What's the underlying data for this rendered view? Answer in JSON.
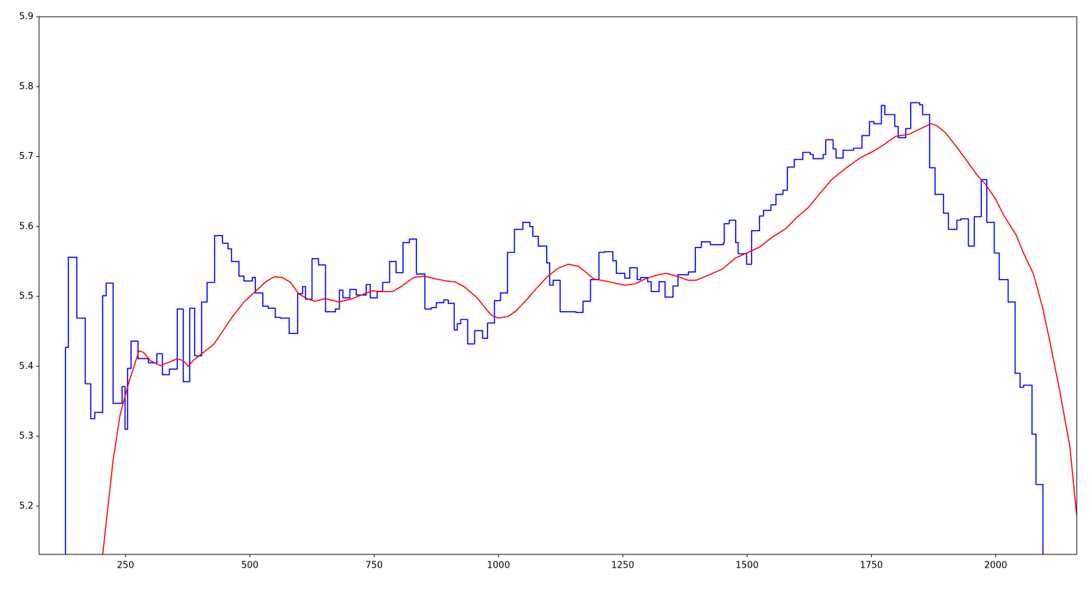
{
  "chart_data": {
    "type": "line",
    "xlim": [
      76,
      2163
    ],
    "ylim": [
      5.131,
      5.9
    ],
    "xticks": [
      250,
      500,
      750,
      1000,
      1250,
      1500,
      1750,
      2000
    ],
    "yticks": [
      5.2,
      5.3,
      5.4,
      5.5,
      5.6,
      5.7,
      5.8,
      5.9
    ],
    "grid": false,
    "series": [
      {
        "color": "#0000ff",
        "drawstyle": "steps-post",
        "x": [
          128,
          129,
          135,
          152,
          169,
          180,
          188,
          204,
          211,
          225,
          243,
          249,
          254,
          261,
          275,
          296,
          313,
          324,
          338,
          354,
          366,
          379,
          389,
          403,
          414,
          429,
          445,
          456,
          463,
          478,
          488,
          505,
          511,
          526,
          537,
          551,
          561,
          579,
          596,
          606,
          612,
          625,
          638,
          652,
          672,
          680,
          687,
          701,
          714,
          734,
          742,
          756,
          767,
          781,
          794,
          808,
          821,
          835,
          852,
          865,
          875,
          890,
          899,
          911,
          917,
          924,
          938,
          952,
          968,
          978,
          992,
          1004,
          1018,
          1032,
          1049,
          1063,
          1069,
          1080,
          1097,
          1103,
          1110,
          1124,
          1156,
          1170,
          1185,
          1202,
          1213,
          1230,
          1237,
          1254,
          1264,
          1279,
          1286,
          1300,
          1307,
          1323,
          1335,
          1351,
          1361,
          1382,
          1396,
          1408,
          1426,
          1452,
          1454,
          1464,
          1477,
          1482,
          1499,
          1509,
          1525,
          1533,
          1548,
          1558,
          1572,
          1581,
          1595,
          1612,
          1627,
          1633,
          1653,
          1658,
          1673,
          1679,
          1693,
          1714,
          1731,
          1746,
          1755,
          1770,
          1777,
          1797,
          1804,
          1819,
          1829,
          1847,
          1853,
          1867,
          1878,
          1895,
          1905,
          1922,
          1930,
          1945,
          1957,
          1971,
          1982,
          1997,
          2007,
          2025,
          2039,
          2049,
          2056,
          2073,
          2081,
          2095
        ],
        "values": [
          5.1,
          5.427,
          5.556,
          5.469,
          5.375,
          5.325,
          5.334,
          5.501,
          5.519,
          5.347,
          5.371,
          5.31,
          5.397,
          5.436,
          5.411,
          5.405,
          5.418,
          5.388,
          5.396,
          5.482,
          5.378,
          5.483,
          5.415,
          5.492,
          5.52,
          5.587,
          5.576,
          5.568,
          5.55,
          5.529,
          5.522,
          5.527,
          5.505,
          5.486,
          5.483,
          5.47,
          5.469,
          5.447,
          5.504,
          5.514,
          5.496,
          5.554,
          5.545,
          5.478,
          5.482,
          5.509,
          5.498,
          5.51,
          5.502,
          5.517,
          5.498,
          5.507,
          5.52,
          5.55,
          5.534,
          5.577,
          5.582,
          5.532,
          5.482,
          5.484,
          5.491,
          5.495,
          5.49,
          5.452,
          5.461,
          5.467,
          5.432,
          5.451,
          5.44,
          5.462,
          5.494,
          5.505,
          5.563,
          5.596,
          5.606,
          5.6,
          5.586,
          5.572,
          5.548,
          5.516,
          5.523,
          5.478,
          5.477,
          5.493,
          5.524,
          5.563,
          5.564,
          5.551,
          5.533,
          5.526,
          5.541,
          5.524,
          5.527,
          5.521,
          5.507,
          5.521,
          5.499,
          5.515,
          5.531,
          5.535,
          5.57,
          5.578,
          5.574,
          5.576,
          5.604,
          5.609,
          5.577,
          5.561,
          5.546,
          5.594,
          5.615,
          5.623,
          5.631,
          5.646,
          5.652,
          5.685,
          5.696,
          5.706,
          5.703,
          5.697,
          5.703,
          5.724,
          5.711,
          5.698,
          5.709,
          5.712,
          5.73,
          5.75,
          5.747,
          5.773,
          5.76,
          5.743,
          5.727,
          5.74,
          5.777,
          5.774,
          5.76,
          5.684,
          5.646,
          5.619,
          5.596,
          5.609,
          5.611,
          5.572,
          5.614,
          5.667,
          5.606,
          5.562,
          5.524,
          5.492,
          5.39,
          5.37,
          5.373,
          5.303,
          5.231,
          5.1
        ]
      },
      {
        "color": "#ff0000",
        "drawstyle": "default",
        "x": [
          204,
          225,
          239,
          257,
          277,
          286,
          300,
          320,
          338,
          354,
          366,
          376,
          387,
          407,
          428,
          446,
          464,
          488,
          511,
          532,
          549,
          565,
          582,
          598,
          614,
          631,
          652,
          679,
          707,
          728,
          746,
          766,
          787,
          804,
          829,
          850,
          874,
          896,
          912,
          933,
          957,
          975,
          986,
          1000,
          1018,
          1035,
          1060,
          1077,
          1098,
          1119,
          1140,
          1161,
          1175,
          1192,
          1215,
          1234,
          1254,
          1275,
          1295,
          1316,
          1337,
          1358,
          1382,
          1397,
          1424,
          1450,
          1477,
          1502,
          1526,
          1551,
          1578,
          1600,
          1623,
          1645,
          1670,
          1696,
          1727,
          1752,
          1771,
          1799,
          1826,
          1846,
          1870,
          1882,
          1899,
          1920,
          1941,
          1961,
          1980,
          1999,
          2017,
          2041,
          2056,
          2076,
          2095,
          2109,
          2129,
          2149,
          2163
        ],
        "values": [
          5.131,
          5.266,
          5.331,
          5.378,
          5.422,
          5.42,
          5.408,
          5.401,
          5.406,
          5.411,
          5.408,
          5.4,
          5.409,
          5.42,
          5.432,
          5.451,
          5.47,
          5.492,
          5.507,
          5.521,
          5.528,
          5.527,
          5.52,
          5.504,
          5.497,
          5.493,
          5.497,
          5.492,
          5.497,
          5.503,
          5.508,
          5.507,
          5.507,
          5.514,
          5.527,
          5.529,
          5.525,
          5.522,
          5.521,
          5.513,
          5.498,
          5.482,
          5.473,
          5.469,
          5.471,
          5.479,
          5.498,
          5.512,
          5.528,
          5.54,
          5.546,
          5.543,
          5.535,
          5.525,
          5.522,
          5.519,
          5.516,
          5.518,
          5.525,
          5.53,
          5.533,
          5.529,
          5.523,
          5.523,
          5.531,
          5.539,
          5.555,
          5.563,
          5.571,
          5.585,
          5.597,
          5.613,
          5.627,
          5.646,
          5.667,
          5.682,
          5.698,
          5.707,
          5.715,
          5.729,
          5.732,
          5.739,
          5.747,
          5.744,
          5.734,
          5.715,
          5.695,
          5.675,
          5.66,
          5.64,
          5.615,
          5.588,
          5.562,
          5.532,
          5.482,
          5.435,
          5.364,
          5.286,
          5.186
        ]
      }
    ]
  }
}
